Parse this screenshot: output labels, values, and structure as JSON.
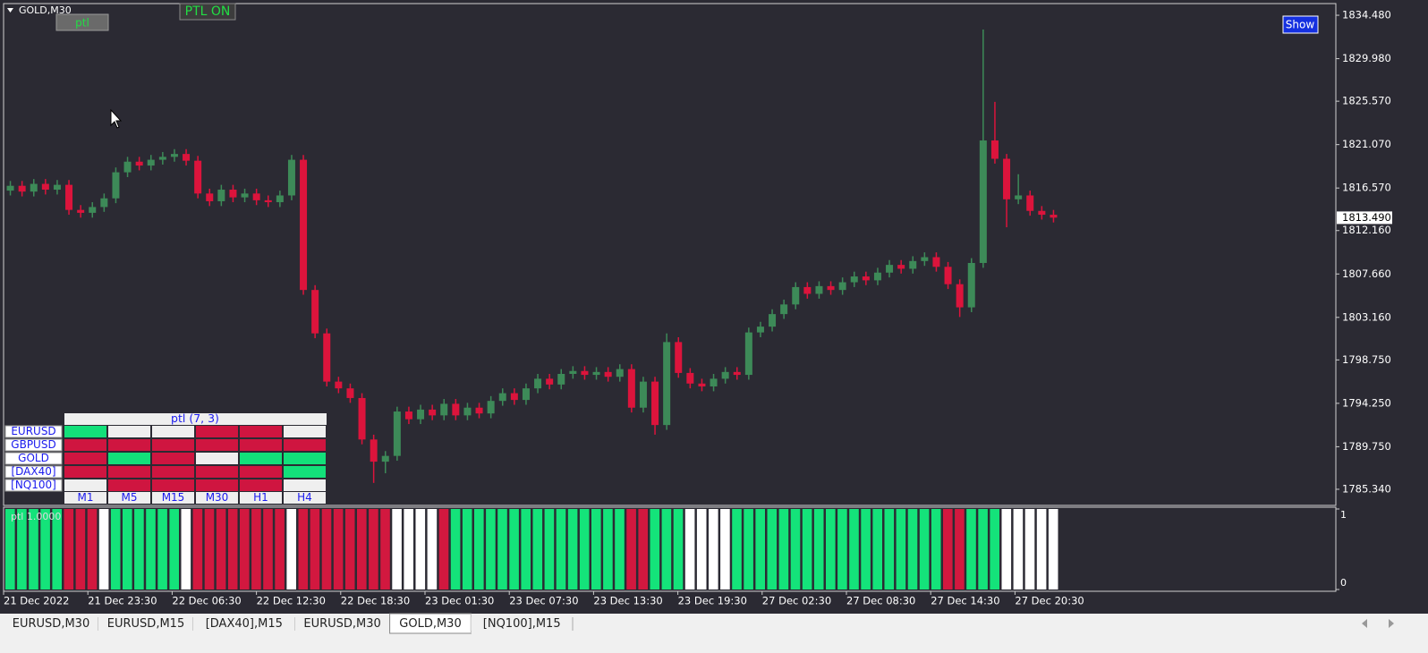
{
  "header": {
    "symbol": "GOLD,M30",
    "ptl_button": "ptl",
    "ptl_status": "PTL ON",
    "show_button": "Show"
  },
  "chart_data": {
    "type": "candlestick",
    "up_color": "#3d8a58",
    "down_color": "#dc143c",
    "ylim": [
      1783.76,
      1835.69
    ],
    "yticks": [
      {
        "value": 1834.48,
        "label": "1834.480"
      },
      {
        "value": 1829.98,
        "label": "1829.980"
      },
      {
        "value": 1825.57,
        "label": "1825.570"
      },
      {
        "value": 1821.07,
        "label": "1821.070"
      },
      {
        "value": 1816.57,
        "label": "1816.570"
      },
      {
        "value": 1812.16,
        "label": "1812.160"
      },
      {
        "value": 1807.66,
        "label": "1807.660"
      },
      {
        "value": 1803.16,
        "label": "1803.160"
      },
      {
        "value": 1798.75,
        "label": "1798.750"
      },
      {
        "value": 1794.25,
        "label": "1794.250"
      },
      {
        "value": 1789.75,
        "label": "1789.750"
      },
      {
        "value": 1785.34,
        "label": "1785.340"
      }
    ],
    "current_price": {
      "value": 1813.49,
      "label": "1813.490"
    },
    "candles": [
      [
        1816.3,
        1817.3,
        1815.8,
        1816.8
      ],
      [
        1816.8,
        1817.3,
        1815.7,
        1816.2
      ],
      [
        1816.2,
        1817.5,
        1815.7,
        1817.0
      ],
      [
        1817.0,
        1817.5,
        1815.9,
        1816.4
      ],
      [
        1816.4,
        1817.4,
        1815.9,
        1816.9
      ],
      [
        1816.9,
        1817.4,
        1813.8,
        1814.3
      ],
      [
        1814.3,
        1814.8,
        1813.5,
        1814.0
      ],
      [
        1814.0,
        1815.1,
        1813.5,
        1814.6
      ],
      [
        1814.6,
        1816.0,
        1814.1,
        1815.5
      ],
      [
        1815.5,
        1818.7,
        1815.0,
        1818.2
      ],
      [
        1818.2,
        1819.8,
        1817.7,
        1819.3
      ],
      [
        1819.3,
        1819.8,
        1818.4,
        1818.9
      ],
      [
        1818.9,
        1820.0,
        1818.4,
        1819.5
      ],
      [
        1819.5,
        1820.3,
        1819.0,
        1819.8
      ],
      [
        1819.8,
        1820.6,
        1819.3,
        1820.1
      ],
      [
        1820.1,
        1820.6,
        1818.9,
        1819.4
      ],
      [
        1819.4,
        1819.9,
        1815.5,
        1816.0
      ],
      [
        1816.0,
        1816.5,
        1814.7,
        1815.2
      ],
      [
        1815.2,
        1816.9,
        1814.7,
        1816.4
      ],
      [
        1816.4,
        1816.9,
        1815.1,
        1815.6
      ],
      [
        1815.6,
        1816.5,
        1815.1,
        1816.0
      ],
      [
        1816.0,
        1816.5,
        1814.8,
        1815.3
      ],
      [
        1815.3,
        1815.8,
        1814.6,
        1815.1
      ],
      [
        1815.1,
        1816.3,
        1814.6,
        1815.8
      ],
      [
        1815.8,
        1820.0,
        1815.3,
        1819.5
      ],
      [
        1819.5,
        1820.0,
        1805.5,
        1806.0
      ],
      [
        1806.0,
        1806.5,
        1801.0,
        1801.5
      ],
      [
        1801.5,
        1802.0,
        1796.0,
        1796.5
      ],
      [
        1796.5,
        1797.0,
        1795.3,
        1795.8
      ],
      [
        1795.8,
        1796.3,
        1794.3,
        1794.8
      ],
      [
        1794.8,
        1795.3,
        1790.0,
        1790.5
      ],
      [
        1790.5,
        1791.0,
        1786.0,
        1788.2
      ],
      [
        1788.2,
        1789.3,
        1787.0,
        1788.8
      ],
      [
        1788.8,
        1793.9,
        1788.3,
        1793.4
      ],
      [
        1793.4,
        1793.9,
        1792.1,
        1792.6
      ],
      [
        1792.6,
        1794.1,
        1792.1,
        1793.6
      ],
      [
        1793.6,
        1794.1,
        1792.5,
        1793.0
      ],
      [
        1793.0,
        1794.7,
        1792.5,
        1794.2
      ],
      [
        1794.2,
        1794.7,
        1792.5,
        1793.0
      ],
      [
        1793.0,
        1794.3,
        1792.5,
        1793.8
      ],
      [
        1793.8,
        1794.3,
        1792.7,
        1793.2
      ],
      [
        1793.2,
        1795.0,
        1792.7,
        1794.5
      ],
      [
        1794.5,
        1795.8,
        1794.0,
        1795.3
      ],
      [
        1795.3,
        1795.8,
        1794.1,
        1794.6
      ],
      [
        1794.6,
        1796.3,
        1794.1,
        1795.8
      ],
      [
        1795.8,
        1797.3,
        1795.3,
        1796.8
      ],
      [
        1796.8,
        1797.3,
        1795.7,
        1796.2
      ],
      [
        1796.2,
        1797.8,
        1795.7,
        1797.3
      ],
      [
        1797.3,
        1798.1,
        1796.8,
        1797.6
      ],
      [
        1797.6,
        1798.1,
        1796.7,
        1797.2
      ],
      [
        1797.2,
        1798.0,
        1796.7,
        1797.5
      ],
      [
        1797.5,
        1798.0,
        1796.5,
        1797.0
      ],
      [
        1797.0,
        1798.3,
        1796.5,
        1797.8
      ],
      [
        1797.8,
        1798.3,
        1793.3,
        1793.8
      ],
      [
        1793.8,
        1797.0,
        1793.3,
        1796.5
      ],
      [
        1796.5,
        1797.0,
        1791.0,
        1792.0
      ],
      [
        1792.0,
        1801.5,
        1791.5,
        1800.6
      ],
      [
        1800.6,
        1801.1,
        1796.9,
        1797.4
      ],
      [
        1797.4,
        1797.9,
        1795.8,
        1796.3
      ],
      [
        1796.3,
        1796.8,
        1795.5,
        1796.0
      ],
      [
        1796.0,
        1797.3,
        1795.5,
        1796.8
      ],
      [
        1796.8,
        1798.0,
        1796.3,
        1797.5
      ],
      [
        1797.5,
        1798.0,
        1796.7,
        1797.2
      ],
      [
        1797.2,
        1802.1,
        1796.7,
        1801.6
      ],
      [
        1801.6,
        1802.7,
        1801.1,
        1802.2
      ],
      [
        1802.2,
        1804.0,
        1801.7,
        1803.5
      ],
      [
        1803.5,
        1805.0,
        1803.0,
        1804.5
      ],
      [
        1804.5,
        1806.8,
        1804.0,
        1806.3
      ],
      [
        1806.3,
        1806.8,
        1805.1,
        1805.6
      ],
      [
        1805.6,
        1806.9,
        1805.1,
        1806.4
      ],
      [
        1806.4,
        1806.9,
        1805.5,
        1806.0
      ],
      [
        1806.0,
        1807.3,
        1805.5,
        1806.8
      ],
      [
        1806.8,
        1807.9,
        1806.3,
        1807.4
      ],
      [
        1807.4,
        1807.9,
        1806.5,
        1807.0
      ],
      [
        1807.0,
        1808.3,
        1806.5,
        1807.8
      ],
      [
        1807.8,
        1809.1,
        1807.3,
        1808.6
      ],
      [
        1808.6,
        1809.1,
        1807.7,
        1808.2
      ],
      [
        1808.2,
        1809.5,
        1807.7,
        1809.0
      ],
      [
        1809.0,
        1809.9,
        1808.5,
        1809.4
      ],
      [
        1809.4,
        1809.9,
        1807.9,
        1808.4
      ],
      [
        1808.4,
        1808.9,
        1806.1,
        1806.6
      ],
      [
        1806.6,
        1807.1,
        1803.2,
        1804.2
      ],
      [
        1804.2,
        1809.3,
        1803.7,
        1808.8
      ],
      [
        1808.8,
        1833.0,
        1808.3,
        1821.5
      ],
      [
        1821.5,
        1825.5,
        1819.1,
        1819.6
      ],
      [
        1819.6,
        1820.1,
        1812.5,
        1815.4
      ],
      [
        1815.4,
        1818.0,
        1814.9,
        1815.8
      ],
      [
        1815.8,
        1816.3,
        1813.7,
        1814.2
      ],
      [
        1814.2,
        1814.7,
        1813.3,
        1813.8
      ],
      [
        1813.8,
        1814.3,
        1813.0,
        1813.5
      ]
    ],
    "x_labels": [
      "21 Dec 2022",
      "21 Dec 23:30",
      "22 Dec 06:30",
      "22 Dec 12:30",
      "22 Dec 18:30",
      "23 Dec 01:30",
      "23 Dec 07:30",
      "23 Dec 13:30",
      "23 Dec 19:30",
      "27 Dec 02:30",
      "27 Dec 08:30",
      "27 Dec 14:30",
      "27 Dec 20:30"
    ]
  },
  "indicator": {
    "label": "ptl 1.0000",
    "ylim": [
      0,
      1
    ],
    "yticks": [
      1,
      0
    ],
    "colors": {
      "green": "#14e37a",
      "red": "#d2183f",
      "white": "#ffffff"
    },
    "states": [
      "green",
      "green",
      "green",
      "green",
      "green",
      "red",
      "red",
      "red",
      "white",
      "green",
      "green",
      "green",
      "green",
      "green",
      "green",
      "white",
      "red",
      "red",
      "red",
      "red",
      "red",
      "red",
      "red",
      "red",
      "white",
      "red",
      "red",
      "red",
      "red",
      "red",
      "red",
      "red",
      "red",
      "white",
      "white",
      "white",
      "white",
      "red",
      "green",
      "green",
      "green",
      "green",
      "green",
      "green",
      "green",
      "green",
      "green",
      "green",
      "green",
      "green",
      "green",
      "green",
      "green",
      "red",
      "red",
      "green",
      "green",
      "green",
      "white",
      "white",
      "white",
      "white",
      "green",
      "green",
      "green",
      "green",
      "green",
      "green",
      "green",
      "green",
      "green",
      "green",
      "green",
      "green",
      "green",
      "green",
      "green",
      "green",
      "green",
      "green",
      "red",
      "red",
      "green",
      "green",
      "green",
      "white",
      "white",
      "white",
      "white",
      "white"
    ]
  },
  "dashboard": {
    "title": "ptl (7, 3)",
    "symbols": [
      "EURUSD",
      "GBPUSD",
      "GOLD",
      "[DAX40]",
      "[NQ100]"
    ],
    "timeframes": [
      "M1",
      "M5",
      "M15",
      "M30",
      "H1",
      "H4"
    ],
    "colors": {
      "green": "#13e07a",
      "red": "#cf1540",
      "white": "#efefef"
    },
    "cells": [
      [
        "green",
        "white",
        "white",
        "red",
        "red",
        "white"
      ],
      [
        "red",
        "red",
        "red",
        "red",
        "red",
        "red"
      ],
      [
        "red",
        "green",
        "red",
        "white",
        "green",
        "green"
      ],
      [
        "red",
        "red",
        "red",
        "red",
        "red",
        "green"
      ],
      [
        "white",
        "red",
        "red",
        "red",
        "red",
        "white"
      ]
    ]
  },
  "tabs": {
    "items": [
      "EURUSD,M30",
      "EURUSD,M15",
      "[DAX40],M15",
      "EURUSD,M30",
      "GOLD,M30",
      "[NQ100],M15"
    ],
    "active": 4
  }
}
